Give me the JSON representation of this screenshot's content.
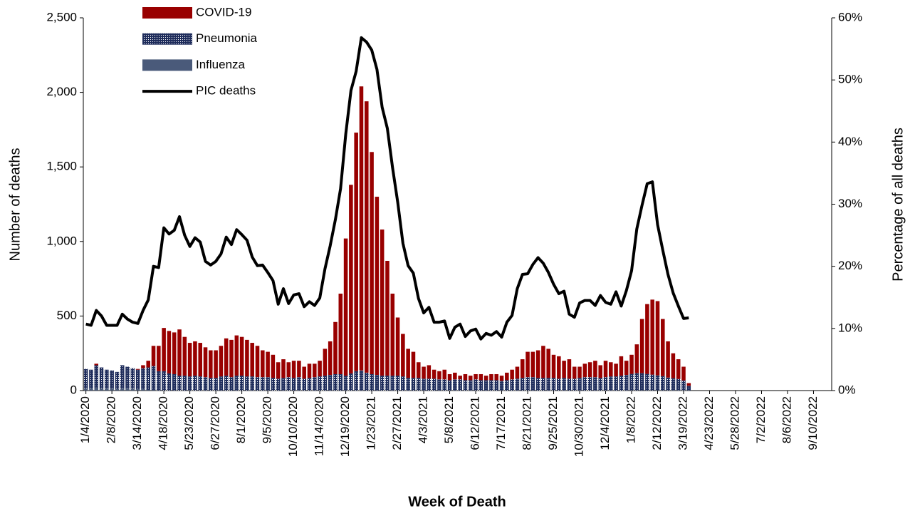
{
  "chart_data": {
    "type": "bar",
    "stacked": true,
    "x_label": "Week of Death",
    "y_label": "Number of deaths",
    "y2_label": "Percentage of all deaths",
    "legend": "upper left",
    "categories": [
      "1/4/2020",
      null,
      null,
      null,
      null,
      "2/8/2020",
      null,
      null,
      null,
      null,
      "3/14/2020",
      null,
      null,
      null,
      null,
      "4/18/2020",
      null,
      null,
      null,
      null,
      "5/23/2020",
      null,
      null,
      null,
      null,
      "6/27/2020",
      null,
      null,
      null,
      null,
      "8/1/2020",
      null,
      null,
      null,
      null,
      "9/5/2020",
      null,
      null,
      null,
      null,
      "10/10/2020",
      null,
      null,
      null,
      null,
      "11/14/2020",
      null,
      null,
      null,
      null,
      "12/19/2020",
      null,
      null,
      null,
      null,
      "1/23/2021",
      null,
      null,
      null,
      null,
      "2/27/2021",
      null,
      null,
      null,
      null,
      "4/3/2021",
      null,
      null,
      null,
      null,
      "5/8/2021",
      null,
      null,
      null,
      null,
      "6/12/2021",
      null,
      null,
      null,
      null,
      "7/17/2021",
      null,
      null,
      null,
      null,
      "8/21/2021",
      null,
      null,
      null,
      null,
      "9/25/2021",
      null,
      null,
      null,
      null,
      "10/30/2021",
      null,
      null,
      null,
      null,
      "12/4/2021",
      null,
      null,
      null,
      null,
      "1/8/2022",
      null,
      null,
      null,
      null,
      "2/12/2022",
      null,
      null,
      null,
      null,
      "3/19/2022",
      null,
      null,
      null,
      null,
      "4/23/2022",
      null,
      null,
      null,
      null,
      "5/28/2022",
      null,
      null,
      null,
      null,
      "7/2/2022",
      null,
      null,
      null,
      null,
      "8/6/2022",
      null,
      null,
      null,
      null,
      "9/10/2022",
      null,
      null,
      null
    ],
    "ylim": [
      0,
      2500
    ],
    "yticks": [
      0,
      500,
      {
        "value": 1000,
        "label": "1,000"
      },
      {
        "value": 1500,
        "label": "1,500"
      },
      {
        "value": 2000,
        "label": "2,000"
      },
      {
        "value": 2500,
        "label": "2,500"
      }
    ],
    "y2lim": [
      0,
      60
    ],
    "y2ticks": [
      {
        "value": 0,
        "label": "0%"
      },
      {
        "value": 10,
        "label": "10%"
      },
      {
        "value": 20,
        "label": "20%"
      },
      {
        "value": 30,
        "label": "30%"
      },
      {
        "value": 40,
        "label": "40%"
      },
      {
        "value": 50,
        "label": "50%"
      },
      {
        "value": 60,
        "label": "60%"
      }
    ],
    "series": [
      {
        "name": "COVID-19",
        "type": "bar",
        "color": "#990000",
        "values": [
          0,
          0,
          10,
          0,
          0,
          0,
          0,
          0,
          0,
          0,
          5,
          20,
          45,
          135,
          170,
          290,
          285,
          280,
          310,
          260,
          225,
          230,
          225,
          200,
          185,
          185,
          205,
          250,
          250,
          270,
          260,
          245,
          225,
          210,
          180,
          170,
          155,
          110,
          125,
          100,
          115,
          110,
          80,
          95,
          90,
          105,
          180,
          225,
          350,
          540,
          920,
          1265,
          1600,
          1905,
          1820,
          1490,
          1195,
          980,
          770,
          550,
          390,
          285,
          195,
          175,
          105,
          80,
          90,
          60,
          55,
          65,
          40,
          45,
          25,
          40,
          30,
          35,
          40,
          30,
          40,
          40,
          35,
          50,
          65,
          80,
          125,
          170,
          170,
          185,
          215,
          195,
          155,
          150,
          115,
          130,
          80,
          75,
          90,
          100,
          110,
          85,
          110,
          95,
          85,
          130,
          95,
          128,
          193,
          363,
          468,
          503,
          498,
          383,
          243,
          167,
          132,
          92,
          18,
          null,
          null,
          null,
          null,
          null,
          null,
          null,
          null,
          null,
          null,
          null,
          null,
          null,
          null,
          null,
          null,
          null,
          null,
          null,
          null,
          null,
          null,
          null,
          null,
          null,
          null,
          null
        ]
      },
      {
        "name": "Pneumonia",
        "type": "bar",
        "color": "#1f2d5c",
        "pattern": "dots",
        "values": [
          130,
          125,
          150,
          140,
          125,
          120,
          115,
          155,
          145,
          135,
          130,
          140,
          150,
          160,
          130,
          130,
          115,
          110,
          100,
          100,
          95,
          100,
          95,
          90,
          85,
          85,
          95,
          100,
          90,
          100,
          100,
          95,
          95,
          90,
          90,
          90,
          85,
          80,
          85,
          90,
          85,
          90,
          80,
          85,
          90,
          95,
          100,
          105,
          110,
          110,
          100,
          115,
          130,
          135,
          120,
          110,
          105,
          100,
          100,
          100,
          100,
          95,
          85,
          85,
          85,
          80,
          80,
          80,
          75,
          75,
          70,
          75,
          75,
          70,
          70,
          75,
          70,
          70,
          70,
          70,
          65,
          70,
          75,
          80,
          85,
          90,
          90,
          85,
          85,
          85,
          85,
          80,
          85,
          80,
          80,
          85,
          90,
          90,
          90,
          85,
          90,
          95,
          95,
          100,
          105,
          110,
          115,
          115,
          110,
          105,
          100,
          95,
          85,
          80,
          75,
          65,
          30,
          null,
          null,
          null,
          null,
          null,
          null,
          null,
          null,
          null,
          null,
          null,
          null,
          null,
          null,
          null,
          null,
          null,
          null,
          null,
          null,
          null,
          null,
          null,
          null,
          null,
          null,
          null
        ]
      },
      {
        "name": "Influenza",
        "type": "bar",
        "color": "#4a5a7a",
        "values": [
          15,
          15,
          20,
          15,
          15,
          15,
          10,
          15,
          15,
          15,
          10,
          10,
          5,
          5,
          0,
          0,
          0,
          0,
          0,
          0,
          0,
          0,
          0,
          0,
          0,
          0,
          0,
          0,
          0,
          0,
          0,
          0,
          0,
          0,
          0,
          0,
          0,
          0,
          0,
          0,
          0,
          0,
          0,
          0,
          0,
          0,
          0,
          0,
          0,
          0,
          0,
          0,
          0,
          0,
          0,
          0,
          0,
          0,
          0,
          0,
          0,
          0,
          0,
          0,
          0,
          0,
          0,
          0,
          0,
          0,
          0,
          0,
          0,
          0,
          0,
          0,
          0,
          0,
          0,
          0,
          0,
          0,
          0,
          0,
          0,
          0,
          0,
          0,
          0,
          0,
          0,
          0,
          0,
          0,
          0,
          0,
          0,
          0,
          0,
          0,
          0,
          0,
          0,
          0,
          0,
          2,
          2,
          2,
          2,
          2,
          2,
          2,
          2,
          3,
          3,
          3,
          2,
          null,
          null,
          null,
          null,
          null,
          null,
          null,
          null,
          null,
          null,
          null,
          null,
          null,
          null,
          null,
          null,
          null,
          null,
          null,
          null,
          null,
          null,
          null,
          null,
          null,
          null,
          null
        ]
      },
      {
        "name": "PIC deaths",
        "type": "line",
        "axis": "y2",
        "color": "#000000",
        "values": [
          10.7,
          10.5,
          12.9,
          12.0,
          10.5,
          10.5,
          10.5,
          12.3,
          11.5,
          11.0,
          10.8,
          12.9,
          14.6,
          20.0,
          19.8,
          26.2,
          25.2,
          25.8,
          28.0,
          25.0,
          23.2,
          24.6,
          23.9,
          20.8,
          20.2,
          20.8,
          22.0,
          24.7,
          23.5,
          25.9,
          25.1,
          24.2,
          21.5,
          20.1,
          20.2,
          19.0,
          17.7,
          13.9,
          16.4,
          14.0,
          15.4,
          15.6,
          13.5,
          14.3,
          13.7,
          14.9,
          19.6,
          23.3,
          27.5,
          32.5,
          41.3,
          48.3,
          51.4,
          56.8,
          56.1,
          54.8,
          51.7,
          45.6,
          42.2,
          35.9,
          30.3,
          23.7,
          20.1,
          18.9,
          14.8,
          12.5,
          13.4,
          11.0,
          11.0,
          11.2,
          8.4,
          10.2,
          10.7,
          8.7,
          9.6,
          9.9,
          8.3,
          9.2,
          8.9,
          9.5,
          8.6,
          11.0,
          12.1,
          16.4,
          18.7,
          18.8,
          20.3,
          21.4,
          20.5,
          19.0,
          17.1,
          15.6,
          16.0,
          12.3,
          11.8,
          14.1,
          14.5,
          14.5,
          13.7,
          15.3,
          14.2,
          13.9,
          15.9,
          13.6,
          16.1,
          19.3,
          26.0,
          29.8,
          33.3,
          33.6,
          26.7,
          22.6,
          18.7,
          15.7,
          13.6,
          11.6,
          11.7,
          null,
          null,
          null,
          null,
          null,
          null,
          null,
          null,
          null,
          null,
          null,
          null,
          null,
          null,
          null,
          null,
          null,
          null,
          null,
          null,
          null,
          null,
          null,
          null,
          null,
          null,
          null
        ]
      }
    ]
  }
}
